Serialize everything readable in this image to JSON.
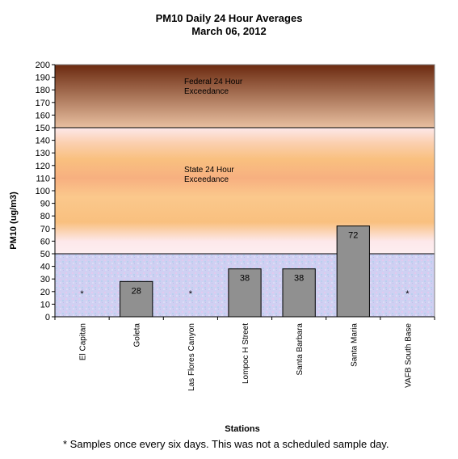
{
  "chart_data": {
    "type": "bar",
    "title": "PM10 Daily 24 Hour Averages",
    "subtitle": "March 06, 2012",
    "xlabel": "Stations",
    "ylabel": "PM10 (ug/m3)",
    "ylim": [
      0,
      200
    ],
    "ytick_step": 10,
    "categories": [
      "El Capitan",
      "Goleta",
      "Las Flores Canyon",
      "Lompoc H Street",
      "Santa Barbara",
      "Santa Maria",
      "VAFB South Base"
    ],
    "values": [
      null,
      28,
      null,
      38,
      38,
      72,
      null
    ],
    "bar_labels": [
      "*",
      "28",
      "*",
      "38",
      "38",
      "72",
      "*"
    ],
    "bar_color": "#909090",
    "thresholds": [
      {
        "value": 150,
        "label_line1": "Federal 24 Hour",
        "label_line2": "Exceedance"
      },
      {
        "value": 50,
        "label_line1": "State 24 Hour",
        "label_line2": "Exceedance"
      }
    ],
    "bands": {
      "federal_top": "#6b2a10",
      "federal_bottom": "#e8bfa0",
      "state_light": "#fde8ea",
      "state_mid": "#f9c07f",
      "clean": "#c8c8f0"
    },
    "grid": false,
    "legend": "none"
  },
  "footnote": "* Samples once every six days.  This was not a scheduled sample day."
}
